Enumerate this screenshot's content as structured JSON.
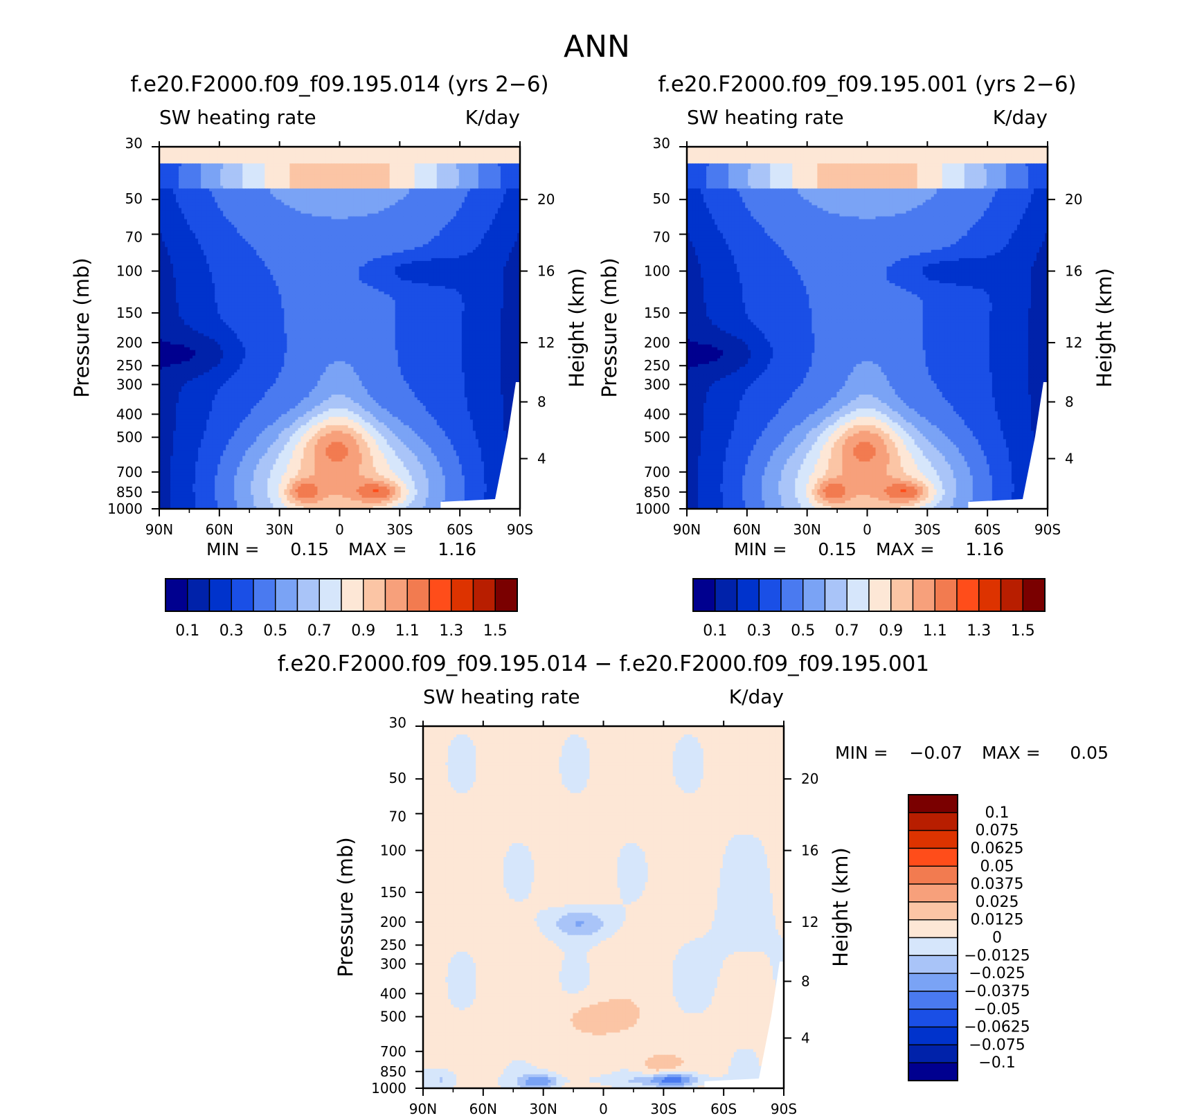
{
  "figure": {
    "title": "ANN",
    "colors": {
      "abs_scale": [
        "#00008f",
        "#0022aa",
        "#0033cc",
        "#1a4fe6",
        "#4a7af0",
        "#7aa3f5",
        "#a9c4f8",
        "#d6e6fb",
        "#fde7d6",
        "#fbc5a5",
        "#f7a07b",
        "#f27b50",
        "#ff4d1a",
        "#dd3300",
        "#b81e00",
        "#7a0000"
      ],
      "diff_scale": [
        "#00008f",
        "#0022aa",
        "#0033cc",
        "#1a4fe6",
        "#4a7af0",
        "#7aa3f5",
        "#a9c4f8",
        "#d6e6fb",
        "#fde7d6",
        "#fbc5a5",
        "#f7a07b",
        "#f27b50",
        "#ff4d1a",
        "#dd3300",
        "#b81e00",
        "#7a0000"
      ]
    }
  },
  "chart_data": [
    {
      "type": "heatmap",
      "title": "f.e20.F2000.f09_f09.195.014 (yrs 2−6)",
      "variable": "SW heating rate",
      "units": "K/day",
      "ylabel": "Pressure (mb)",
      "y2label": "Height (km)",
      "x_ticks": [
        "90N",
        "60N",
        "30N",
        "0",
        "30S",
        "60S",
        "90S"
      ],
      "x_values": [
        90,
        60,
        30,
        0,
        -30,
        -60,
        -90
      ],
      "y_ticks": [
        "30",
        "50",
        "70",
        "100",
        "150",
        "200",
        "250",
        "300",
        "400",
        "500",
        "700",
        "850",
        "1000"
      ],
      "y_values": [
        30,
        50,
        70,
        100,
        150,
        200,
        250,
        300,
        400,
        500,
        700,
        850,
        1000
      ],
      "y2_ticks": [
        "20",
        "16",
        "12",
        "8",
        "4"
      ],
      "y_scale": "log",
      "stats": {
        "min_label": "MIN =",
        "min": "0.15",
        "max_label": "MAX =",
        "max": "1.16"
      },
      "colorbar_labels": [
        "0.1",
        "0.3",
        "0.5",
        "0.7",
        "0.9",
        "1.1",
        "1.3",
        "1.5"
      ],
      "colorbar_levels": [
        0.1,
        0.2,
        0.3,
        0.4,
        0.5,
        0.6,
        0.7,
        0.8,
        0.9,
        1.0,
        1.1,
        1.2,
        1.3,
        1.4,
        1.5
      ]
    },
    {
      "type": "heatmap",
      "title": "f.e20.F2000.f09_f09.195.001 (yrs 2−6)",
      "variable": "SW heating rate",
      "units": "K/day",
      "ylabel": "Pressure (mb)",
      "y2label": "Height (km)",
      "x_ticks": [
        "90N",
        "60N",
        "30N",
        "0",
        "30S",
        "60S",
        "90S"
      ],
      "x_values": [
        90,
        60,
        30,
        0,
        -30,
        -60,
        -90
      ],
      "y_ticks": [
        "30",
        "50",
        "70",
        "100",
        "150",
        "200",
        "250",
        "300",
        "400",
        "500",
        "700",
        "850",
        "1000"
      ],
      "y_values": [
        30,
        50,
        70,
        100,
        150,
        200,
        250,
        300,
        400,
        500,
        700,
        850,
        1000
      ],
      "y2_ticks": [
        "20",
        "16",
        "12",
        "8",
        "4"
      ],
      "y_scale": "log",
      "stats": {
        "min_label": "MIN =",
        "min": "0.15",
        "max_label": "MAX =",
        "max": "1.16"
      },
      "colorbar_labels": [
        "0.1",
        "0.3",
        "0.5",
        "0.7",
        "0.9",
        "1.1",
        "1.3",
        "1.5"
      ],
      "colorbar_levels": [
        0.1,
        0.2,
        0.3,
        0.4,
        0.5,
        0.6,
        0.7,
        0.8,
        0.9,
        1.0,
        1.1,
        1.2,
        1.3,
        1.4,
        1.5
      ]
    },
    {
      "type": "heatmap",
      "title": "f.e20.F2000.f09_f09.195.014 − f.e20.F2000.f09_f09.195.001",
      "variable": "SW heating rate",
      "units": "K/day",
      "ylabel": "Pressure (mb)",
      "y2label": "Height (km)",
      "x_ticks": [
        "90N",
        "60N",
        "30N",
        "0",
        "30S",
        "60S",
        "90S"
      ],
      "x_values": [
        90,
        60,
        30,
        0,
        -30,
        -60,
        -90
      ],
      "y_ticks": [
        "30",
        "50",
        "70",
        "100",
        "150",
        "200",
        "250",
        "300",
        "400",
        "500",
        "700",
        "850",
        "1000"
      ],
      "y_values": [
        30,
        50,
        70,
        100,
        150,
        200,
        250,
        300,
        400,
        500,
        700,
        850,
        1000
      ],
      "y2_ticks": [
        "20",
        "16",
        "12",
        "8",
        "4"
      ],
      "y_scale": "log",
      "stats": {
        "min_label": "MIN =",
        "min": "−0.07",
        "max_label": "MAX =",
        "max": "0.05"
      },
      "colorbar_labels": [
        "0.1",
        "0.075",
        "0.0625",
        "0.05",
        "0.0375",
        "0.025",
        "0.0125",
        "0",
        "−0.0125",
        "−0.025",
        "−0.0375",
        "−0.05",
        "−0.0625",
        "−0.075",
        "−0.1"
      ],
      "colorbar_levels": [
        0.1,
        0.075,
        0.0625,
        0.05,
        0.0375,
        0.025,
        0.0125,
        0,
        -0.0125,
        -0.025,
        -0.0375,
        -0.05,
        -0.0625,
        -0.075,
        -0.1
      ]
    }
  ]
}
